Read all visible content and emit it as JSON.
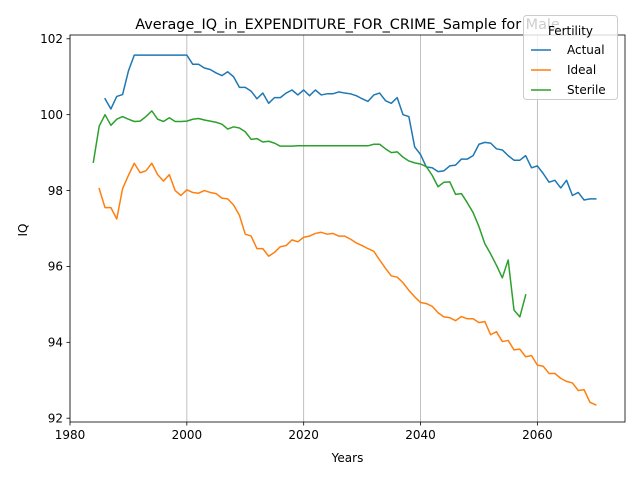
{
  "chart_data": {
    "type": "line",
    "title": "Average_IQ_in_EXPENDITURE_FOR_CRIME_Sample for Male",
    "xlabel": "Years",
    "ylabel": "IQ",
    "xlim": [
      1980,
      2075
    ],
    "ylim": [
      91.9,
      102.1
    ],
    "xticks": [
      1980,
      2000,
      2020,
      2040,
      2060
    ],
    "yticks": [
      92,
      94,
      96,
      98,
      100,
      102
    ],
    "grid": "vertical",
    "legend": {
      "title": "Fertility",
      "position": "top-right"
    },
    "colors": {
      "Actual": "#1f77b4",
      "Ideal": "#ff7f0e",
      "Sterile": "#2ca02c"
    },
    "series": [
      {
        "name": "Actual",
        "x": [
          1986,
          1987,
          1988,
          1989,
          1990,
          1991,
          1992,
          1993,
          1994,
          1995,
          1996,
          1997,
          1998,
          1999,
          2000,
          2001,
          2002,
          2003,
          2004,
          2005,
          2006,
          2007,
          2008,
          2009,
          2010,
          2011,
          2012,
          2013,
          2014,
          2015,
          2016,
          2017,
          2018,
          2019,
          2020,
          2021,
          2022,
          2023,
          2024,
          2025,
          2026,
          2027,
          2028,
          2029,
          2030,
          2031,
          2032,
          2033,
          2034,
          2035,
          2036,
          2037,
          2038,
          2039,
          2040,
          2041,
          2042,
          2043,
          2044,
          2045,
          2046,
          2047,
          2048,
          2049,
          2050,
          2051,
          2052,
          2053,
          2054,
          2055,
          2056,
          2057,
          2058,
          2059,
          2060,
          2061,
          2062,
          2063,
          2064,
          2065,
          2066,
          2067,
          2068,
          2069,
          2070
        ],
        "values": [
          100.42,
          100.15,
          100.48,
          100.53,
          101.15,
          101.57,
          101.57,
          101.57,
          101.57,
          101.57,
          101.57,
          101.57,
          101.57,
          101.57,
          101.57,
          101.33,
          101.33,
          101.23,
          101.19,
          101.1,
          101.03,
          101.13,
          101.0,
          100.72,
          100.72,
          100.62,
          100.42,
          100.57,
          100.3,
          100.45,
          100.45,
          100.57,
          100.65,
          100.52,
          100.65,
          100.5,
          100.65,
          100.52,
          100.55,
          100.55,
          100.6,
          100.57,
          100.55,
          100.5,
          100.42,
          100.35,
          100.52,
          100.57,
          100.37,
          100.3,
          100.45,
          100.0,
          99.95,
          99.15,
          98.95,
          98.62,
          98.6,
          98.5,
          98.52,
          98.65,
          98.67,
          98.83,
          98.83,
          98.92,
          99.22,
          99.27,
          99.25,
          99.1,
          99.07,
          98.92,
          98.8,
          98.8,
          98.92,
          98.6,
          98.65,
          98.45,
          98.22,
          98.27,
          98.07,
          98.27,
          97.87,
          97.95,
          97.75,
          97.78,
          97.78
        ]
      },
      {
        "name": "Ideal",
        "x": [
          1985,
          1986,
          1987,
          1988,
          1989,
          1990,
          1991,
          1992,
          1993,
          1994,
          1995,
          1996,
          1997,
          1998,
          1999,
          2000,
          2001,
          2002,
          2003,
          2004,
          2005,
          2006,
          2007,
          2008,
          2009,
          2010,
          2011,
          2012,
          2013,
          2014,
          2015,
          2016,
          2017,
          2018,
          2019,
          2020,
          2021,
          2022,
          2023,
          2024,
          2025,
          2026,
          2027,
          2028,
          2029,
          2030,
          2031,
          2032,
          2033,
          2034,
          2035,
          2036,
          2037,
          2038,
          2039,
          2040,
          2041,
          2042,
          2043,
          2044,
          2045,
          2046,
          2047,
          2048,
          2049,
          2050,
          2051,
          2052,
          2053,
          2054,
          2055,
          2056,
          2057,
          2058,
          2059,
          2060,
          2061,
          2062,
          2063,
          2064,
          2065,
          2066,
          2067,
          2068,
          2069,
          2070
        ],
        "values": [
          98.05,
          97.55,
          97.55,
          97.25,
          98.05,
          98.4,
          98.72,
          98.47,
          98.52,
          98.72,
          98.42,
          98.25,
          98.42,
          98.0,
          97.87,
          98.02,
          97.95,
          97.93,
          98.0,
          97.95,
          97.92,
          97.8,
          97.78,
          97.62,
          97.35,
          96.85,
          96.8,
          96.47,
          96.47,
          96.27,
          96.37,
          96.52,
          96.55,
          96.7,
          96.65,
          96.77,
          96.8,
          96.87,
          96.9,
          96.85,
          96.87,
          96.8,
          96.8,
          96.72,
          96.62,
          96.55,
          96.47,
          96.4,
          96.17,
          95.95,
          95.75,
          95.72,
          95.57,
          95.37,
          95.2,
          95.05,
          95.02,
          94.95,
          94.78,
          94.67,
          94.65,
          94.57,
          94.68,
          94.62,
          94.62,
          94.52,
          94.55,
          94.2,
          94.28,
          94.02,
          94.05,
          93.8,
          93.82,
          93.62,
          93.65,
          93.4,
          93.37,
          93.18,
          93.18,
          93.05,
          92.97,
          92.93,
          92.73,
          92.75,
          92.42,
          92.35
        ]
      },
      {
        "name": "Sterile",
        "x": [
          1984,
          1985,
          1986,
          1987,
          1988,
          1989,
          1990,
          1991,
          1992,
          1993,
          1994,
          1995,
          1996,
          1997,
          1998,
          1999,
          2000,
          2001,
          2002,
          2003,
          2004,
          2005,
          2006,
          2007,
          2008,
          2009,
          2010,
          2011,
          2012,
          2013,
          2014,
          2015,
          2016,
          2017,
          2018,
          2019,
          2020,
          2021,
          2022,
          2023,
          2024,
          2025,
          2026,
          2027,
          2028,
          2029,
          2030,
          2031,
          2032,
          2033,
          2034,
          2035,
          2036,
          2037,
          2038,
          2039,
          2040,
          2041,
          2042,
          2043,
          2044,
          2045,
          2046,
          2047,
          2048,
          2049,
          2050,
          2051,
          2052,
          2053,
          2054,
          2055,
          2056,
          2057,
          2058
        ],
        "values": [
          98.75,
          99.7,
          100.0,
          99.72,
          99.88,
          99.95,
          99.88,
          99.82,
          99.83,
          99.95,
          100.1,
          99.88,
          99.82,
          99.92,
          99.82,
          99.82,
          99.83,
          99.88,
          99.9,
          99.86,
          99.83,
          99.8,
          99.75,
          99.62,
          99.68,
          99.65,
          99.55,
          99.35,
          99.37,
          99.28,
          99.3,
          99.25,
          99.17,
          99.17,
          99.17,
          99.18,
          99.18,
          99.18,
          99.18,
          99.18,
          99.18,
          99.18,
          99.18,
          99.18,
          99.18,
          99.18,
          99.18,
          99.18,
          99.22,
          99.22,
          99.1,
          99.0,
          99.02,
          98.88,
          98.78,
          98.73,
          98.7,
          98.63,
          98.4,
          98.1,
          98.22,
          98.23,
          97.9,
          97.92,
          97.68,
          97.42,
          97.05,
          96.6,
          96.33,
          96.03,
          95.7,
          96.17,
          94.85,
          94.67,
          95.25
        ]
      }
    ]
  }
}
